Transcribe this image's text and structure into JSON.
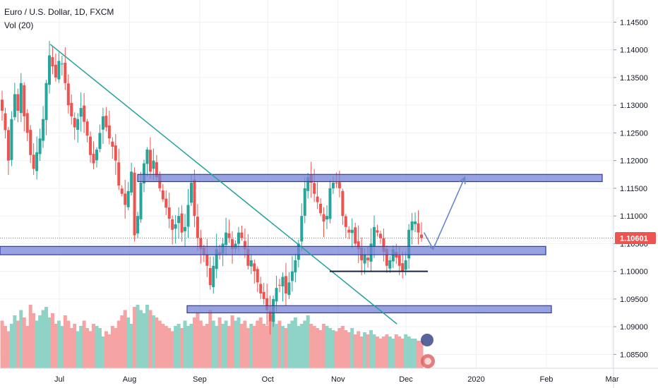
{
  "legend": {
    "symbol": "Euro / U.S. Dollar, 1D, FXCM",
    "indicator": "Vol (20)"
  },
  "colors": {
    "up": "#26a69a",
    "down": "#ef5350",
    "vol_up": "#8fd3c7",
    "vol_down": "#f5a3a3",
    "zone_fill": "#7783d6",
    "zone_stroke": "#2a3ba8",
    "trendline": "#1fa39a",
    "arrow": "#6b86c7",
    "support": "#1c2340",
    "price_line": "#ef5350",
    "grid": "#eef0f5"
  },
  "chart_data": {
    "type": "candlestick",
    "symbol": "EURUSD",
    "timeframe": "1D",
    "ylim": [
      1.0825,
      1.149
    ],
    "yticks": [
      1.085,
      1.09,
      1.095,
      1.1,
      1.105,
      1.11,
      1.115,
      1.12,
      1.125,
      1.13,
      1.135,
      1.14,
      1.145
    ],
    "ytick_labels": [
      "1.08500",
      "1.09000",
      "1.09500",
      "1.10000",
      "1.10500",
      "1.11000",
      "1.11500",
      "1.12000",
      "1.12500",
      "1.13000",
      "1.13500",
      "1.14000",
      "1.14500"
    ],
    "xticks": [
      {
        "label": "Jul",
        "date": "2019-07-01"
      },
      {
        "label": "Aug",
        "date": "2019-08-01"
      },
      {
        "label": "Sep",
        "date": "2019-09-01"
      },
      {
        "label": "Oct",
        "date": "2019-10-01"
      },
      {
        "label": "Nov",
        "date": "2019-11-01"
      },
      {
        "label": "Dec",
        "date": "2019-12-01"
      },
      {
        "label": "2020",
        "date": "2020-01-01"
      },
      {
        "label": "Feb",
        "date": "2020-02-01"
      },
      {
        "label": "Mar",
        "date": "2020-03-01"
      }
    ],
    "current_price": 1.10601,
    "current_price_label": "1.10601",
    "closes": [
      1.129,
      1.1255,
      1.12,
      1.1275,
      1.132,
      1.129,
      1.134,
      1.128,
      1.125,
      1.121,
      1.1185,
      1.1215,
      1.124,
      1.1275,
      1.134,
      1.139,
      1.137,
      1.135,
      1.138,
      1.1375,
      1.134,
      1.13,
      1.128,
      1.126,
      1.1275,
      1.1295,
      1.127,
      1.1245,
      1.121,
      1.1195,
      1.122,
      1.125,
      1.128,
      1.126,
      1.124,
      1.1225,
      1.12,
      1.1155,
      1.114,
      1.112,
      1.1145,
      1.118,
      1.1065,
      1.11,
      1.116,
      1.1195,
      1.122,
      1.118,
      1.12,
      1.117,
      1.115,
      1.113,
      1.1115,
      1.1095,
      1.1075,
      1.1085,
      1.11,
      1.107,
      1.108,
      1.112,
      1.116,
      1.11,
      1.106,
      1.104,
      1.103,
      1.101,
      1.0975,
      1.101,
      1.104,
      1.103,
      1.105,
      1.107,
      1.106,
      1.104,
      1.105,
      1.107,
      1.106,
      1.104,
      1.101,
      1.102,
      1.1,
      1.098,
      1.096,
      1.095,
      1.093,
      1.091,
      1.095,
      1.097,
      1.0975,
      1.099,
      1.096,
      1.098,
      1.1,
      1.102,
      1.105,
      1.11,
      1.115,
      1.117,
      1.116,
      1.114,
      1.1125,
      1.1105,
      1.109,
      1.11,
      1.115,
      1.116,
      1.116,
      1.115,
      1.11,
      1.108,
      1.107,
      1.1075,
      1.105,
      1.104,
      1.102,
      1.103,
      1.102,
      1.105,
      1.108,
      1.107,
      1.106,
      1.1035,
      1.101,
      1.102,
      1.104,
      1.1025,
      1.101,
      1.1,
      1.102,
      1.1075,
      1.109,
      1.109,
      1.107,
      1.106
    ],
    "volume_relative": [
      0.45,
      0.4,
      0.35,
      0.42,
      0.5,
      0.45,
      0.55,
      0.48,
      0.4,
      0.6,
      0.52,
      0.45,
      0.5,
      0.55,
      0.58,
      0.48,
      0.52,
      0.42,
      0.45,
      0.4,
      0.5,
      0.45,
      0.38,
      0.42,
      0.35,
      0.4,
      0.45,
      0.38,
      0.35,
      0.42,
      0.4,
      0.38,
      0.3,
      0.35,
      0.32,
      0.4,
      0.38,
      0.45,
      0.5,
      0.55,
      0.48,
      0.42,
      0.58,
      0.6,
      0.55,
      0.52,
      0.6,
      0.55,
      0.5,
      0.48,
      0.45,
      0.42,
      0.4,
      0.38,
      0.35,
      0.4,
      0.42,
      0.38,
      0.45,
      0.4,
      0.42,
      0.48,
      0.52,
      0.45,
      0.4,
      0.42,
      0.55,
      0.45,
      0.4,
      0.48,
      0.42,
      0.45,
      0.4,
      0.5,
      0.45,
      0.48,
      0.42,
      0.45,
      0.38,
      0.42,
      0.4,
      0.45,
      0.48,
      0.42,
      0.4,
      0.45,
      0.5,
      0.42,
      0.45,
      0.4,
      0.38,
      0.42,
      0.45,
      0.48,
      0.4,
      0.42,
      0.45,
      0.5,
      0.42,
      0.4,
      0.38,
      0.36,
      0.42,
      0.4,
      0.38,
      0.36,
      0.35,
      0.38,
      0.4,
      0.36,
      0.34,
      0.38,
      0.32,
      0.35,
      0.3,
      0.34,
      0.32,
      0.36,
      0.32,
      0.3,
      0.28,
      0.3,
      0.32,
      0.3,
      0.28,
      0.32,
      0.3,
      0.28,
      0.32,
      0.3,
      0.28,
      0.28,
      0.26,
      0.26
    ],
    "annotations": {
      "resistance_zone": [
        1.1162,
        1.1175
      ],
      "support_zone": [
        1.103,
        1.1045
      ],
      "lower_zone": [
        1.0925,
        1.0938
      ],
      "support_line": 1.1,
      "trendline": [
        {
          "date": "2019-06-27",
          "price": 1.141
        },
        {
          "date": "2019-11-27",
          "price": 1.0905
        }
      ],
      "projection": [
        {
          "date": "2019-12-09",
          "price": 1.107
        },
        {
          "date": "2019-12-13",
          "price": 1.104
        },
        {
          "date": "2019-12-27",
          "price": 1.117
        }
      ]
    }
  }
}
